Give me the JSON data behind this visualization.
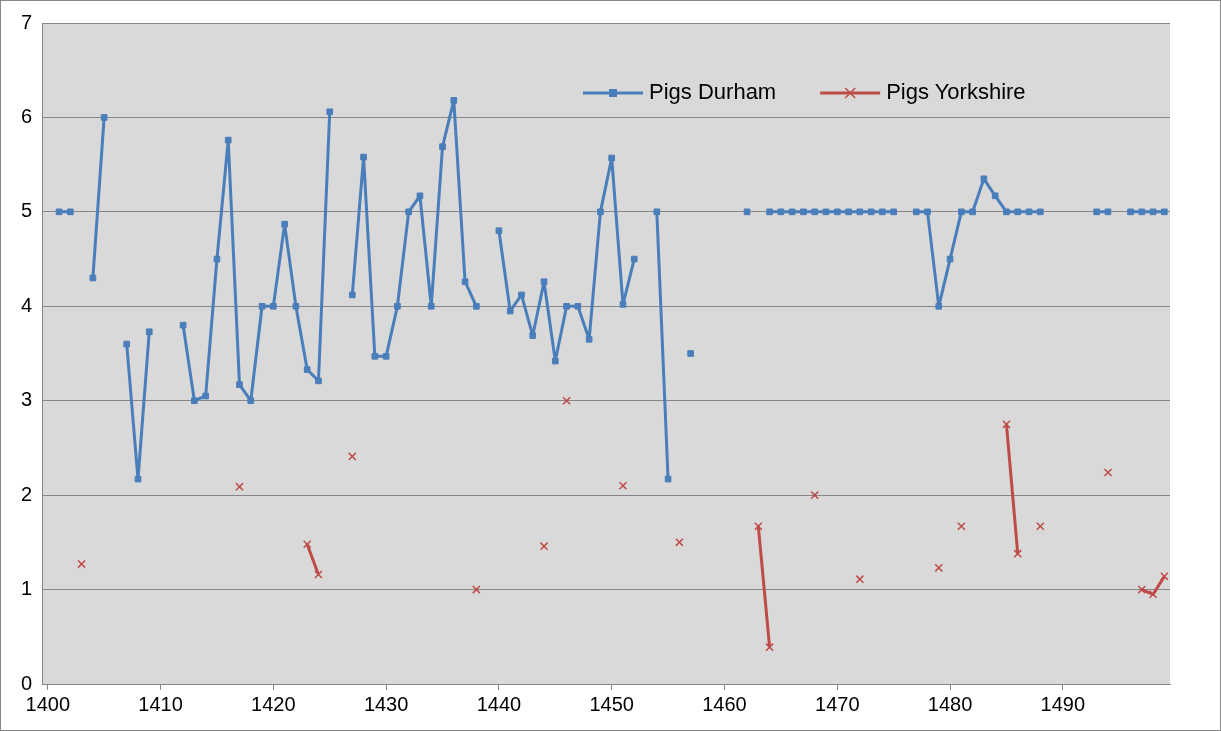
{
  "chart_data": {
    "type": "line",
    "x": [
      1401,
      1402,
      1403,
      1404,
      1405,
      1406,
      1407,
      1408,
      1409,
      1410,
      1411,
      1412,
      1413,
      1414,
      1415,
      1416,
      1417,
      1418,
      1419,
      1420,
      1421,
      1422,
      1423,
      1424,
      1425,
      1426,
      1427,
      1428,
      1429,
      1430,
      1431,
      1432,
      1433,
      1434,
      1435,
      1436,
      1437,
      1438,
      1439,
      1440,
      1441,
      1442,
      1443,
      1444,
      1445,
      1446,
      1447,
      1448,
      1449,
      1450,
      1451,
      1452,
      1453,
      1454,
      1455,
      1456,
      1457,
      1458,
      1459,
      1460,
      1461,
      1462,
      1463,
      1464,
      1465,
      1466,
      1467,
      1468,
      1469,
      1470,
      1471,
      1472,
      1473,
      1474,
      1475,
      1476,
      1477,
      1478,
      1479,
      1480,
      1481,
      1482,
      1483,
      1484,
      1485,
      1486,
      1487,
      1488,
      1489,
      1490,
      1491,
      1492,
      1493,
      1494,
      1495,
      1496,
      1497,
      1498,
      1499
    ],
    "xlim": [
      1399.5,
      1499.5
    ],
    "xticks": [
      1400,
      1410,
      1420,
      1430,
      1440,
      1450,
      1460,
      1470,
      1480,
      1490
    ],
    "ylim": [
      0,
      7
    ],
    "yticks": [
      0,
      1,
      2,
      3,
      4,
      5,
      6,
      7
    ],
    "grid": "y",
    "legend": "top right",
    "line_style": "solid",
    "series": [
      {
        "name": "Pigs Durham",
        "color": "#4a7ebb",
        "marker": "square",
        "values": [
          5,
          5,
          null,
          4.3,
          6,
          null,
          3.6,
          2.17,
          3.73,
          null,
          null,
          3.8,
          3,
          3.05,
          4.5,
          5.76,
          3.17,
          3,
          4,
          4,
          4.87,
          4,
          3.33,
          3.21,
          6.06,
          null,
          4.12,
          5.58,
          3.47,
          3.47,
          4,
          5,
          5.17,
          4,
          5.69,
          6.18,
          4.26,
          4,
          null,
          4.8,
          3.95,
          4.12,
          3.69,
          4.26,
          3.42,
          4,
          4,
          3.65,
          5,
          5.57,
          4.02,
          4.5,
          null,
          5,
          2.17,
          null,
          3.5,
          null,
          null,
          null,
          null,
          5,
          null,
          5,
          5,
          5,
          5,
          5,
          5,
          5,
          5,
          5,
          5,
          5,
          5,
          null,
          5,
          5,
          4,
          4.5,
          5,
          5,
          5.35,
          5.17,
          5,
          5,
          5,
          5,
          null,
          null,
          null,
          null,
          5,
          5,
          null,
          5,
          5,
          5,
          5
        ]
      },
      {
        "name": "Pigs Yorkshire",
        "color": "#be4b48",
        "marker": "cross",
        "values": [
          null,
          null,
          1.27,
          null,
          null,
          null,
          null,
          null,
          null,
          null,
          null,
          null,
          null,
          null,
          null,
          null,
          2.09,
          null,
          null,
          null,
          null,
          null,
          1.48,
          1.16,
          null,
          null,
          2.41,
          null,
          null,
          null,
          null,
          null,
          null,
          null,
          null,
          null,
          null,
          1,
          null,
          null,
          null,
          null,
          null,
          1.46,
          null,
          3,
          null,
          null,
          null,
          null,
          2.1,
          null,
          null,
          null,
          null,
          1.5,
          null,
          null,
          null,
          null,
          null,
          null,
          1.67,
          0.39,
          null,
          null,
          null,
          2,
          null,
          null,
          null,
          1.11,
          null,
          null,
          null,
          null,
          null,
          null,
          1.23,
          null,
          1.67,
          null,
          null,
          null,
          2.75,
          1.38,
          null,
          1.67,
          null,
          null,
          null,
          null,
          null,
          2.24,
          null,
          null,
          1,
          0.95,
          1.14
        ]
      }
    ]
  }
}
